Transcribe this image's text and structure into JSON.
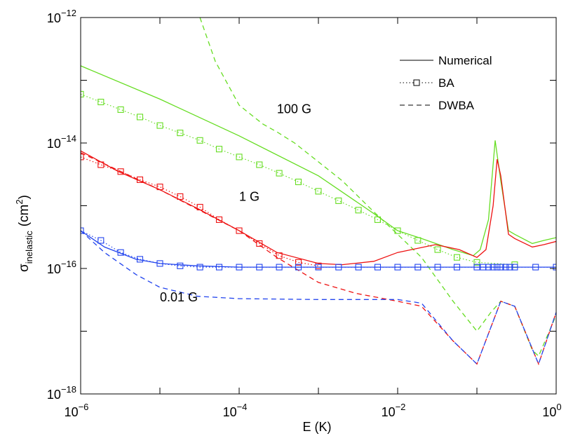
{
  "chart_data": {
    "type": "line",
    "title": "",
    "xlabel": "E (K)",
    "ylabel": {
      "main": "σ",
      "sub": "inelastic",
      "unit_prefix": "(cm",
      "unit_sup": "2",
      "unit_suffix": ")"
    },
    "x_scale": "log",
    "y_scale": "log",
    "xlim": [
      1e-06,
      1
    ],
    "ylim": [
      1e-18,
      1e-12
    ],
    "x_ticks": [
      {
        "base": "10",
        "exp": "−6",
        "value": 1e-06
      },
      {
        "base": "10",
        "exp": "−4",
        "value": 0.0001
      },
      {
        "base": "10",
        "exp": "−2",
        "value": 0.01
      },
      {
        "base": "10",
        "exp": "0",
        "value": 1
      }
    ],
    "y_ticks": [
      {
        "base": "10",
        "exp": "−18",
        "value": 1e-18
      },
      {
        "base": "10",
        "exp": "−16",
        "value": 1e-16
      },
      {
        "base": "10",
        "exp": "−14",
        "value": 1e-14
      },
      {
        "base": "10",
        "exp": "−12",
        "value": 1e-12
      }
    ],
    "grid": false,
    "legend": {
      "position": "top-right",
      "entries": [
        {
          "label": "Numerical",
          "style": "solid"
        },
        {
          "label": "BA",
          "style": "dotted-square"
        },
        {
          "label": "DWBA",
          "style": "dashed"
        }
      ]
    },
    "series_labels": [
      {
        "text": "100 G",
        "color": "#66dd22",
        "x": 0.0003,
        "y": 3e-14
      },
      {
        "text": "1 G",
        "color": "#ee1111",
        "x": 0.0001,
        "y": 1.2e-15
      },
      {
        "text": "0.01 G",
        "color": "#2244ee",
        "x": 1e-05,
        "y": 3e-17
      }
    ],
    "series": [
      {
        "field": "100 G",
        "method": "Numerical",
        "style": "solid",
        "color": "#66dd22",
        "x": [
          1e-06,
          1e-05,
          0.0001,
          0.001,
          0.005,
          0.01,
          0.02,
          0.05,
          0.09,
          0.11,
          0.14,
          0.17,
          0.2,
          0.25,
          0.3,
          0.5,
          0.7,
          1
        ],
        "y": [
          1.7e-13,
          5e-14,
          1.3e-14,
          3e-15,
          7.5e-16,
          4e-16,
          3e-16,
          2e-16,
          1.6e-16,
          2e-16,
          6e-16,
          1.1e-14,
          2.5e-15,
          4e-16,
          3.5e-16,
          2.5e-16,
          2.8e-16,
          3.1e-16
        ]
      },
      {
        "field": "100 G",
        "method": "BA",
        "style": "dotted-square",
        "color": "#66dd22",
        "x": [
          1e-06,
          1.8e-06,
          3.2e-06,
          5.6e-06,
          1e-05,
          1.8e-05,
          3.2e-05,
          5.6e-05,
          0.0001,
          0.00018,
          0.00032,
          0.00056,
          0.001,
          0.0018,
          0.0032,
          0.0056,
          0.01,
          0.018,
          0.032,
          0.056,
          0.1,
          0.3
        ],
        "y": [
          6e-14,
          4.5e-14,
          3.4e-14,
          2.6e-14,
          1.9e-14,
          1.45e-14,
          1.1e-14,
          8e-15,
          6e-15,
          4.5e-15,
          3.3e-15,
          2.4e-15,
          1.7e-15,
          1.2e-15,
          8.5e-16,
          6e-16,
          4e-16,
          2.8e-16,
          2e-16,
          1.5e-16,
          1.25e-16,
          1.15e-16
        ]
      },
      {
        "field": "100 G",
        "method": "DWBA",
        "style": "dashed",
        "color": "#66dd22",
        "x": [
          3.2e-05,
          5e-05,
          0.0001,
          0.0002,
          0.0003,
          0.0005,
          0.001,
          0.002,
          0.005,
          0.01,
          0.02,
          0.05,
          0.1,
          0.15,
          0.2,
          0.3,
          0.5,
          0.6,
          1
        ],
        "y": [
          1e-12,
          2e-13,
          4e-14,
          2e-14,
          1.5e-14,
          1e-14,
          5e-15,
          2.5e-15,
          8e-16,
          3.5e-16,
          1.5e-16,
          3e-17,
          1e-17,
          2e-17,
          3e-17,
          2.5e-17,
          5e-18,
          4e-18,
          1.8e-17
        ]
      },
      {
        "field": "1 G",
        "method": "Numerical",
        "style": "solid",
        "color": "#ee1111",
        "x": [
          1e-06,
          3e-06,
          1e-05,
          3e-05,
          0.0001,
          0.0003,
          0.001,
          0.002,
          0.005,
          0.01,
          0.03,
          0.06,
          0.1,
          0.13,
          0.16,
          0.18,
          0.2,
          0.25,
          0.3,
          0.5,
          0.7,
          1
        ],
        "y": [
          7.5e-15,
          3.5e-15,
          1.8e-15,
          9e-16,
          4e-16,
          1.8e-16,
          1.2e-16,
          1.15e-16,
          1.3e-16,
          1.8e-16,
          2.4e-16,
          2e-16,
          1.5e-16,
          2e-16,
          1e-15,
          5.5e-15,
          3e-15,
          3.5e-16,
          3e-16,
          2.2e-16,
          2.4e-16,
          2.7e-16
        ]
      },
      {
        "field": "1 G",
        "method": "BA",
        "style": "dotted-square",
        "color": "#ee1111",
        "x": [
          1e-06,
          1.8e-06,
          3.2e-06,
          5.6e-06,
          1e-05,
          1.8e-05,
          3.2e-05,
          5.6e-05,
          0.0001,
          0.00018,
          0.00032,
          0.00056,
          0.001
        ],
        "y": [
          6e-15,
          4.5e-15,
          3.5e-15,
          2.6e-15,
          2e-15,
          1.4e-15,
          9.5e-16,
          6e-16,
          4e-16,
          2.5e-16,
          1.6e-16,
          1.25e-16,
          1.1e-16
        ]
      },
      {
        "field": "1 G",
        "method": "DWBA",
        "style": "dashed",
        "color": "#ee1111",
        "x": [
          1e-06,
          1e-05,
          0.0001,
          0.0003,
          0.001,
          0.003,
          0.01,
          0.02,
          0.05,
          0.1,
          0.2,
          0.3,
          0.6,
          1
        ],
        "y": [
          7e-15,
          1.8e-15,
          4e-16,
          1.5e-16,
          6e-17,
          4e-17,
          3e-17,
          2.5e-17,
          7e-18,
          3e-18,
          3e-17,
          2.5e-17,
          3e-18,
          2e-17
        ]
      },
      {
        "field": "0.01 G",
        "method": "Numerical",
        "style": "solid",
        "color": "#2244ee",
        "x": [
          1e-06,
          2e-06,
          5e-06,
          1e-05,
          3e-05,
          0.0001,
          0.001,
          0.01,
          0.1,
          0.3,
          1
        ],
        "y": [
          4e-16,
          2.2e-16,
          1.4e-16,
          1.2e-16,
          1.1e-16,
          1.05e-16,
          1.05e-16,
          1.05e-16,
          1.05e-16,
          1.05e-16,
          1.05e-16
        ]
      },
      {
        "field": "0.01 G",
        "method": "BA",
        "style": "dotted-square",
        "color": "#2244ee",
        "x": [
          1e-06,
          1.8e-06,
          3.2e-06,
          5.6e-06,
          1e-05,
          1.8e-05,
          3.2e-05,
          5.6e-05,
          0.0001,
          0.00018,
          0.00032,
          0.00056,
          0.001,
          0.0018,
          0.0032,
          0.0056,
          0.01,
          0.018,
          0.032,
          0.056,
          0.1,
          0.12,
          0.14,
          0.16,
          0.18,
          0.2,
          0.23,
          0.26,
          0.3,
          0.55,
          1
        ],
        "y": [
          4e-16,
          2.8e-16,
          1.8e-16,
          1.4e-16,
          1.2e-16,
          1.1e-16,
          1.05e-16,
          1.05e-16,
          1.05e-16,
          1.05e-16,
          1.05e-16,
          1.05e-16,
          1.05e-16,
          1.05e-16,
          1.05e-16,
          1.05e-16,
          1.05e-16,
          1.05e-16,
          1.05e-16,
          1.05e-16,
          1.05e-16,
          1.05e-16,
          1.05e-16,
          1.05e-16,
          1.05e-16,
          1.05e-16,
          1.05e-16,
          1.05e-16,
          1.05e-16,
          1.05e-16,
          1.05e-16
        ]
      },
      {
        "field": "0.01 G",
        "method": "DWBA",
        "style": "dashed",
        "color": "#2244ee",
        "x": [
          1e-06,
          2e-06,
          5e-06,
          1e-05,
          3e-05,
          0.0001,
          0.001,
          0.01,
          0.02,
          0.05,
          0.1,
          0.2,
          0.3,
          0.6,
          1
        ],
        "y": [
          4e-16,
          1.8e-16,
          8e-17,
          5e-17,
          3.6e-17,
          3.3e-17,
          3.2e-17,
          3.2e-17,
          2.8e-17,
          7e-18,
          3e-18,
          3e-17,
          2.5e-17,
          3e-18,
          2e-17
        ]
      }
    ]
  }
}
